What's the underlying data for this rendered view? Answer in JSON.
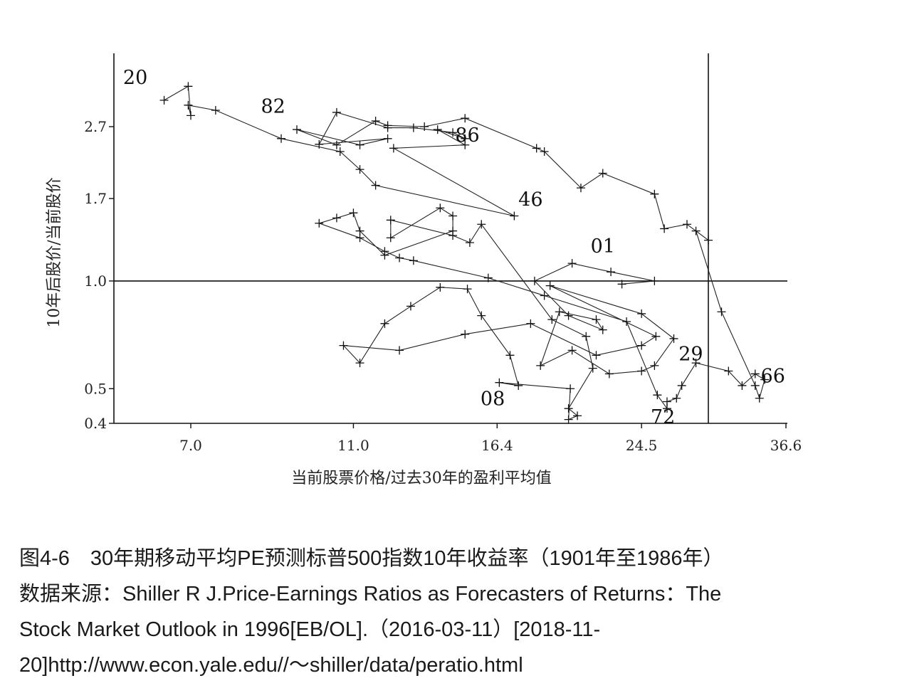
{
  "chart_data": {
    "type": "scatter",
    "title": "",
    "xlabel": "当前股票价格/过去30年的盈利平均值",
    "ylabel": "10年后股价/当前股价",
    "x_scale": "log",
    "y_scale": "log",
    "xlim": [
      5.5,
      36.6
    ],
    "ylim": [
      0.4,
      4.0
    ],
    "x_ticks": [
      7.0,
      11.0,
      16.4,
      24.5,
      36.6
    ],
    "x_tick_labels": [
      "7.0",
      "11.0",
      "16.4",
      "24.5",
      "36.6"
    ],
    "y_ticks": [
      0.4,
      0.5,
      1.0,
      1.7,
      2.7
    ],
    "y_tick_labels": [
      "0.4",
      "0.5",
      "1.0",
      "1.7",
      "2.7"
    ],
    "reference_lines": {
      "horizontal_y": 1.0,
      "vertical_x": 29.5
    },
    "grid": false,
    "legend": "none",
    "marker": "+",
    "series": [
      {
        "values": [
          [
            6.5,
            3.2
          ],
          [
            6.95,
            3.5
          ],
          [
            7.0,
            2.9
          ],
          [
            6.95,
            3.1
          ],
          [
            7.5,
            3.0
          ],
          [
            9.0,
            2.5
          ],
          [
            10.6,
            2.3
          ],
          [
            11.2,
            2.05
          ],
          [
            11.7,
            1.85
          ],
          [
            17.2,
            1.52
          ],
          [
            12.3,
            2.35
          ],
          [
            15.0,
            2.4
          ],
          [
            13.9,
            2.65
          ],
          [
            15.0,
            2.5
          ],
          [
            14.5,
            2.6
          ],
          [
            13.0,
            2.68
          ],
          [
            12.1,
            2.68
          ],
          [
            10.5,
            2.96
          ],
          [
            10.0,
            2.41
          ],
          [
            12.1,
            2.5
          ],
          [
            11.2,
            2.4
          ],
          [
            9.4,
            2.65
          ],
          [
            10.5,
            2.4
          ],
          [
            11.7,
            2.8
          ],
          [
            12.1,
            2.72
          ],
          [
            13.4,
            2.7
          ],
          [
            15.0,
            2.85
          ],
          [
            18.3,
            2.35
          ],
          [
            18.7,
            2.3
          ],
          [
            20.7,
            1.82
          ],
          [
            22.0,
            2.0
          ],
          [
            25.4,
            1.75
          ],
          [
            26.1,
            1.4
          ],
          [
            27.8,
            1.44
          ],
          [
            29.5,
            1.3
          ],
          [
            28.5,
            1.38
          ],
          [
            30.6,
            0.82
          ],
          [
            33.6,
            0.51
          ],
          [
            34.0,
            0.47
          ],
          [
            34.5,
            0.53
          ],
          [
            33.6,
            0.55
          ],
          [
            32.4,
            0.51
          ],
          [
            31.2,
            0.56
          ],
          [
            28.5,
            0.59
          ],
          [
            27.4,
            0.51
          ],
          [
            27.0,
            0.47
          ],
          [
            26.3,
            0.46
          ],
          [
            26.3,
            0.44
          ],
          [
            25.6,
            0.48
          ],
          [
            23.5,
            0.77
          ],
          [
            18.7,
            0.91
          ],
          [
            16.0,
            1.02
          ],
          [
            13.0,
            1.14
          ],
          [
            12.5,
            1.16
          ],
          [
            12.0,
            1.21
          ],
          [
            11.2,
            1.32
          ],
          [
            10.0,
            1.45
          ],
          [
            10.5,
            1.5
          ],
          [
            11.0,
            1.55
          ],
          [
            11.2,
            1.38
          ],
          [
            12.0,
            1.18
          ],
          [
            14.5,
            1.38
          ],
          [
            14.5,
            1.52
          ],
          [
            14.0,
            1.6
          ],
          [
            12.2,
            1.32
          ],
          [
            12.2,
            1.48
          ],
          [
            14.5,
            1.34
          ],
          [
            15.2,
            1.28
          ],
          [
            15.7,
            1.44
          ],
          [
            19.1,
            0.78
          ],
          [
            21.0,
            0.7
          ],
          [
            21.4,
            0.57
          ],
          [
            20.0,
            0.44
          ],
          [
            20.5,
            0.42
          ],
          [
            20.0,
            0.41
          ],
          [
            20.1,
            0.5
          ],
          [
            16.5,
            0.52
          ],
          [
            17.4,
            0.51
          ],
          [
            17.0,
            0.62
          ],
          [
            15.7,
            0.8
          ],
          [
            15.1,
            0.95
          ],
          [
            14.0,
            0.96
          ],
          [
            12.9,
            0.85
          ],
          [
            12.0,
            0.76
          ],
          [
            11.2,
            0.59
          ],
          [
            10.7,
            0.66
          ],
          [
            12.5,
            0.64
          ],
          [
            15.0,
            0.71
          ],
          [
            18.0,
            0.76
          ],
          [
            21.6,
            0.62
          ],
          [
            24.5,
            0.66
          ],
          [
            25.5,
            0.7
          ],
          [
            19.0,
            0.97
          ],
          [
            24.5,
            0.81
          ],
          [
            26.8,
            0.69
          ],
          [
            25.4,
            0.58
          ],
          [
            24.5,
            0.56
          ],
          [
            22.4,
            0.55
          ],
          [
            20.2,
            0.64
          ],
          [
            18.5,
            0.58
          ],
          [
            19.5,
            0.82
          ],
          [
            21.6,
            0.78
          ],
          [
            22.0,
            0.73
          ],
          [
            20.0,
            0.8
          ],
          [
            18.2,
            1.0
          ],
          [
            20.2,
            1.12
          ],
          [
            22.5,
            1.06
          ],
          [
            25.4,
            1.0
          ],
          [
            23.2,
            0.98
          ]
        ]
      }
    ],
    "point_labels": [
      {
        "text": "20",
        "x": 6.0,
        "y": 3.55
      },
      {
        "text": "82",
        "x": 8.8,
        "y": 2.95
      },
      {
        "text": "86",
        "x": 15.1,
        "y": 2.45
      },
      {
        "text": "46",
        "x": 18.0,
        "y": 1.62
      },
      {
        "text": "01",
        "x": 22.0,
        "y": 1.2
      },
      {
        "text": "29",
        "x": 28.1,
        "y": 0.6
      },
      {
        "text": "66",
        "x": 35.3,
        "y": 0.52
      },
      {
        "text": "08",
        "x": 16.2,
        "y": 0.45
      },
      {
        "text": "72",
        "x": 26.0,
        "y": 0.4
      }
    ]
  },
  "caption": {
    "line1": "图4-6　30年期移动平均PE预测标普500指数10年收益率（1901年至1986年）",
    "line2": "数据来源：Shiller R J.Price-Earnings Ratios as Forecasters of Returns：The",
    "line3": "Stock Market Outlook in 1996[EB/OL].（2016-03-11）[2018-11-",
    "line4": "20]http://www.econ.yale.edu//～shiller/data/peratio.html"
  }
}
